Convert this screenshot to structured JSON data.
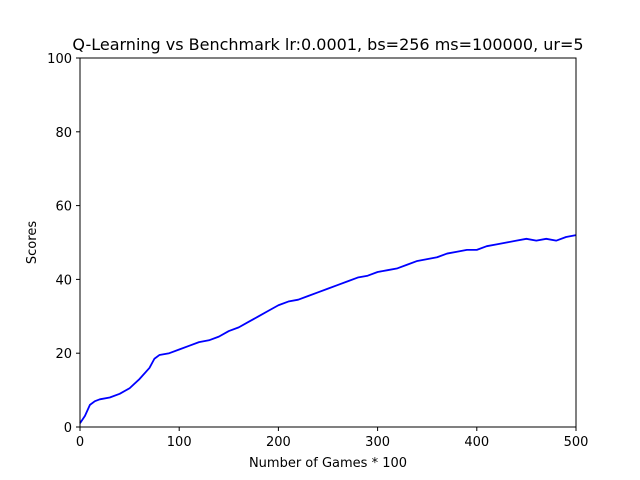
{
  "chart_data": {
    "type": "line",
    "title": "Q-Learning vs Benchmark lr:0.0001, bs=256 ms=100000, ur=5",
    "xlabel": "Number of Games * 100",
    "ylabel": "Scores",
    "xlim": [
      0,
      500
    ],
    "ylim": [
      0,
      100
    ],
    "xticks": [
      0,
      100,
      200,
      300,
      400,
      500
    ],
    "yticks": [
      0,
      20,
      40,
      60,
      80,
      100
    ],
    "grid": false,
    "series": [
      {
        "color": "#0000ff",
        "x": [
          0,
          5,
          10,
          15,
          20,
          30,
          40,
          50,
          60,
          70,
          75,
          80,
          90,
          100,
          110,
          120,
          130,
          140,
          150,
          160,
          170,
          180,
          190,
          200,
          210,
          220,
          230,
          240,
          250,
          260,
          270,
          280,
          290,
          300,
          310,
          320,
          330,
          340,
          350,
          360,
          370,
          380,
          390,
          400,
          410,
          420,
          430,
          440,
          450,
          460,
          470,
          480,
          490,
          500
        ],
        "y": [
          1,
          3,
          6,
          7,
          7.5,
          8,
          9,
          10.5,
          13,
          16,
          18.5,
          19.5,
          20,
          21,
          22,
          23,
          23.5,
          24.5,
          26,
          27,
          28.5,
          30,
          31.5,
          33,
          34,
          34.5,
          35.5,
          36.5,
          37.5,
          38.5,
          39.5,
          40.5,
          41,
          42,
          42.5,
          43,
          44,
          45,
          45.5,
          46,
          47,
          47.5,
          48,
          48,
          49,
          49.5,
          50,
          50.5,
          51,
          50.5,
          51,
          50.5,
          51.5,
          52
        ]
      }
    ]
  }
}
